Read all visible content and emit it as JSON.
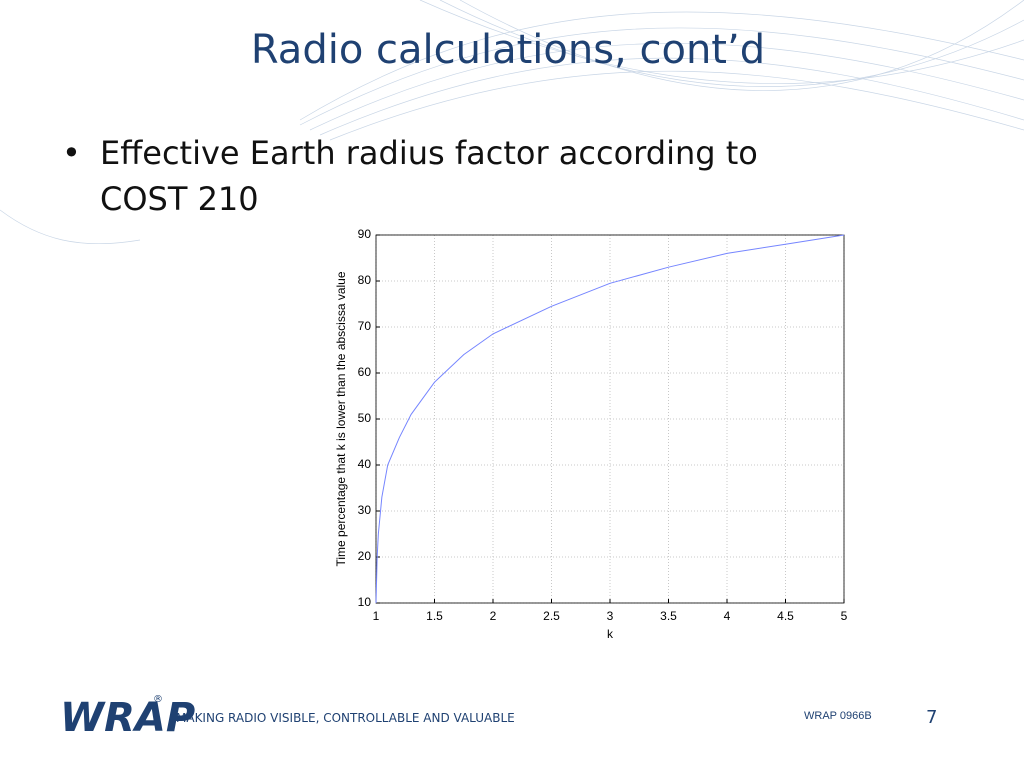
{
  "slide": {
    "title": "Radio calculations, cont’d",
    "bullet_lines": [
      "Effective Earth radius factor according to",
      "COST 210"
    ],
    "logo": "WRAP",
    "logo_mark": "®",
    "tagline": "MAKING RADIO VISIBLE, CONTROLLABLE AND VALUABLE",
    "doc_id": "WRAP 0966B",
    "page_number": "7"
  },
  "chart_data": {
    "type": "line",
    "x_label": "k",
    "y_label": "Time percentage that k is lower than the abscissa value",
    "series": [
      {
        "color": "#7585ff",
        "x": [
          1.0,
          1.01,
          1.02,
          1.05,
          1.1,
          1.2,
          1.3,
          1.5,
          1.75,
          2.0,
          2.5,
          3.0,
          3.5,
          4.0,
          4.5,
          5.0
        ],
        "values": [
          10,
          20,
          25,
          33,
          40,
          46,
          51,
          58,
          64,
          68.5,
          74.5,
          79.5,
          83,
          86,
          88,
          90
        ]
      }
    ],
    "xlim": [
      1,
      5
    ],
    "xticks": [
      1,
      1.5,
      2,
      2.5,
      3,
      3.5,
      4,
      4.5,
      5
    ],
    "ylim": [
      10,
      90
    ],
    "yticks": [
      10,
      20,
      30,
      40,
      50,
      60,
      70,
      80,
      90
    ],
    "grid": true
  }
}
